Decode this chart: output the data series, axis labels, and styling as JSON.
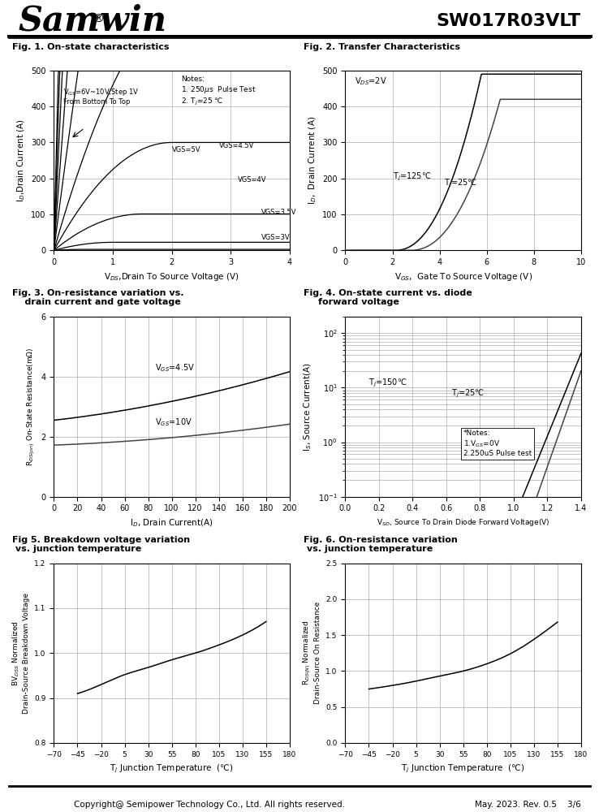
{
  "title_left": "Samwin",
  "title_right": "SW017R03VLT",
  "fig1_title": "Fig. 1. On-state characteristics",
  "fig2_title": "Fig. 2. Transfer Characteristics",
  "fig3_title_l1": "Fig. 3. On-resistance variation vs.",
  "fig3_title_l2": "    drain current and gate voltage",
  "fig4_title_l1": "Fig. 4. On-state current vs. diode",
  "fig4_title_l2": "    forward voltage",
  "fig5_title_l1": "Fig 5. Breakdown voltage variation",
  "fig5_title_l2": " vs. junction temperature",
  "fig6_title_l1": "Fig. 6. On-resistance variation",
  "fig6_title_l2": " vs. junction temperature",
  "footer": "Copyright@ Semipower Technology Co., Ltd. All rights reserved.",
  "footer_right": "May. 2023. Rev. 0.5    3/6",
  "background_color": "#ffffff",
  "grid_color": "#999999"
}
